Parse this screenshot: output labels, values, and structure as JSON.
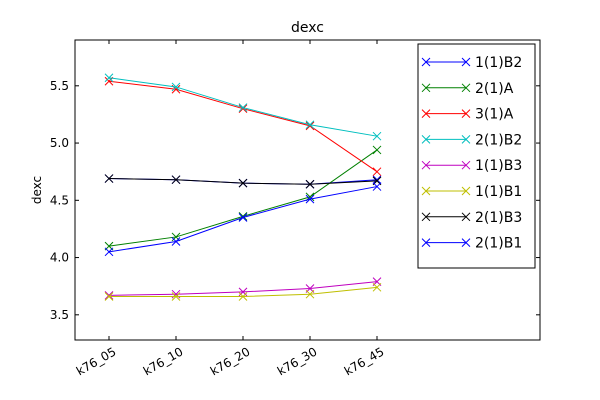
{
  "chart_data": {
    "type": "line",
    "title": "dexc",
    "xlabel": "",
    "ylabel": "dexc",
    "categories": [
      "k76_05",
      "k76_10",
      "k76_20",
      "k76_30",
      "k76_45"
    ],
    "ylim": [
      3.28,
      5.9
    ],
    "yticks": [
      3.5,
      4.0,
      4.5,
      5.0,
      5.5
    ],
    "ytick_labels": [
      "3.5",
      "4.0",
      "4.5",
      "5.0",
      "5.5"
    ],
    "grid": false,
    "legend_position": "top-right",
    "marker": "x",
    "series": [
      {
        "name": "1(1)B2",
        "color": "#0000ff",
        "values": [
          4.69,
          4.68,
          4.65,
          4.64,
          4.68
        ]
      },
      {
        "name": "2(1)A",
        "color": "#008000",
        "values": [
          4.1,
          4.18,
          4.36,
          4.53,
          4.94
        ]
      },
      {
        "name": "3(1)A",
        "color": "#ff0000",
        "values": [
          5.54,
          5.47,
          5.3,
          5.15,
          4.75
        ]
      },
      {
        "name": "2(1)B2",
        "color": "#00bfbf",
        "values": [
          5.57,
          5.49,
          5.31,
          5.16,
          5.06
        ]
      },
      {
        "name": "1(1)B3",
        "color": "#bf00bf",
        "values": [
          3.67,
          3.68,
          3.7,
          3.73,
          3.79
        ]
      },
      {
        "name": "1(1)B1",
        "color": "#bfbf00",
        "values": [
          3.66,
          3.66,
          3.66,
          3.68,
          3.74
        ]
      },
      {
        "name": "2(1)B3",
        "color": "#000000",
        "values": [
          4.69,
          4.68,
          4.65,
          4.64,
          4.67
        ]
      },
      {
        "name": "2(1)B1",
        "color": "#0000ff",
        "values": [
          4.05,
          4.14,
          4.35,
          4.51,
          4.62
        ]
      }
    ]
  }
}
